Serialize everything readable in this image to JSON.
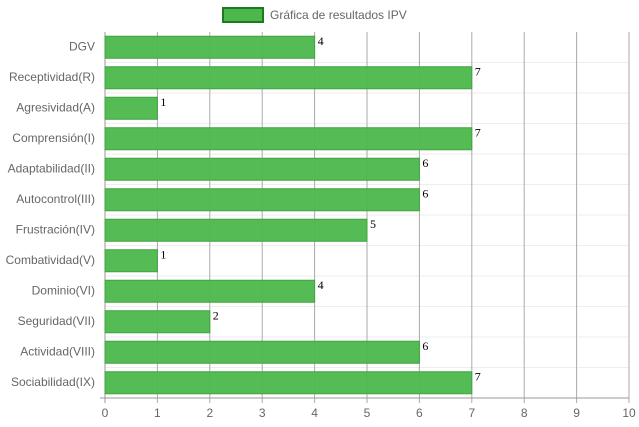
{
  "chart_data": {
    "type": "bar",
    "horizontal": true,
    "categories": [
      "DGV",
      "Receptividad(R)",
      "Agresividad(A)",
      "Comprensión(I)",
      "Adaptabilidad(II)",
      "Autocontrol(III)",
      "Frustración(IV)",
      "Combatividad(V)",
      "Dominio(VI)",
      "Seguridad(VII)",
      "Actividad(VIII)",
      "Sociabilidad(IX)"
    ],
    "series": [
      {
        "name": "Gráfica de resultados IPV",
        "color": "#4cb84c",
        "values": [
          4,
          7,
          1,
          7,
          6,
          6,
          5,
          1,
          4,
          2,
          6,
          7
        ]
      }
    ],
    "xlim": [
      0,
      10
    ],
    "xticks": [
      0,
      1,
      2,
      3,
      4,
      5,
      6,
      7,
      8,
      9,
      10
    ],
    "grid": true,
    "legend": "top"
  }
}
